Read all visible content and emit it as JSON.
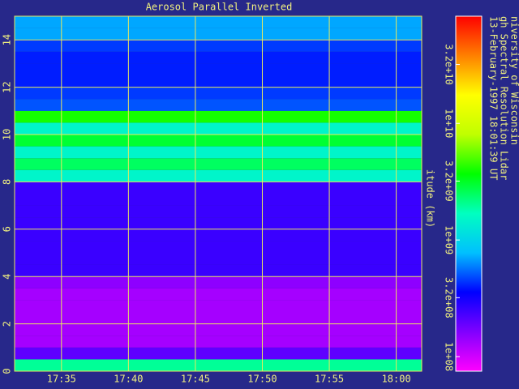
{
  "chart_data": {
    "type": "heatmap",
    "title": "Aerosol Parallel Inverted",
    "ylabel": "itude (km)",
    "annotations": [
      "niversity of Wisconsin",
      "gh Spectral Resolution Lidar",
      "13-February-1997 18:01:39 UT"
    ],
    "xlim": [
      31.5,
      61.9
    ],
    "xticks": [
      {
        "value": 35,
        "label": "17:35"
      },
      {
        "value": 40,
        "label": "17:40"
      },
      {
        "value": 45,
        "label": "17:45"
      },
      {
        "value": 50,
        "label": "17:50"
      },
      {
        "value": 55,
        "label": "17:55"
      },
      {
        "value": 60,
        "label": "18:00"
      }
    ],
    "ylim": [
      0,
      15
    ],
    "yticks": [
      0,
      2,
      4,
      6,
      8,
      10,
      12,
      14
    ],
    "grid": true,
    "grid_color": "#e8e860",
    "y_bins": [
      0,
      0.5,
      1,
      1.5,
      2,
      2.5,
      3,
      3.5,
      4,
      4.5,
      5,
      5.5,
      6,
      6.5,
      7,
      7.5,
      8,
      8.5,
      9,
      9.5,
      10,
      10.5,
      11,
      11.5,
      12,
      12.5,
      13,
      13.5,
      14,
      14.5,
      15
    ],
    "values": [
      2000000000,
      200000000,
      130000000,
      130000000,
      130000000,
      130000000,
      130000000,
      150000000,
      250000000,
      250000000,
      250000000,
      250000000,
      250000000,
      250000000,
      250000000,
      250000000,
      1500000000,
      2500000000,
      1500000000,
      3000000000,
      1500000000,
      4000000000,
      500000000,
      450000000,
      400000000,
      400000000,
      400000000,
      450000000,
      700000000,
      700000000
    ],
    "log_color_scale": true,
    "clim": [
      75000000,
      83000000000
    ],
    "colormap": [
      "#ff00ff",
      "#8000ff",
      "#0000ff",
      "#00c0ff",
      "#00ffc0",
      "#00ff00",
      "#c0ff00",
      "#ffff00",
      "#ff8000",
      "#ff0000"
    ],
    "cticks": [
      {
        "value": 100000000,
        "label": "1e+08"
      },
      {
        "value": 320000000,
        "label": "3.2e+08"
      },
      {
        "value": 1000000000,
        "label": "1e+09"
      },
      {
        "value": 3200000000,
        "label": "3.2e+09"
      },
      {
        "value": 10000000000,
        "label": "1e+10"
      },
      {
        "value": 32000000000,
        "label": "3.2e+10"
      }
    ]
  }
}
